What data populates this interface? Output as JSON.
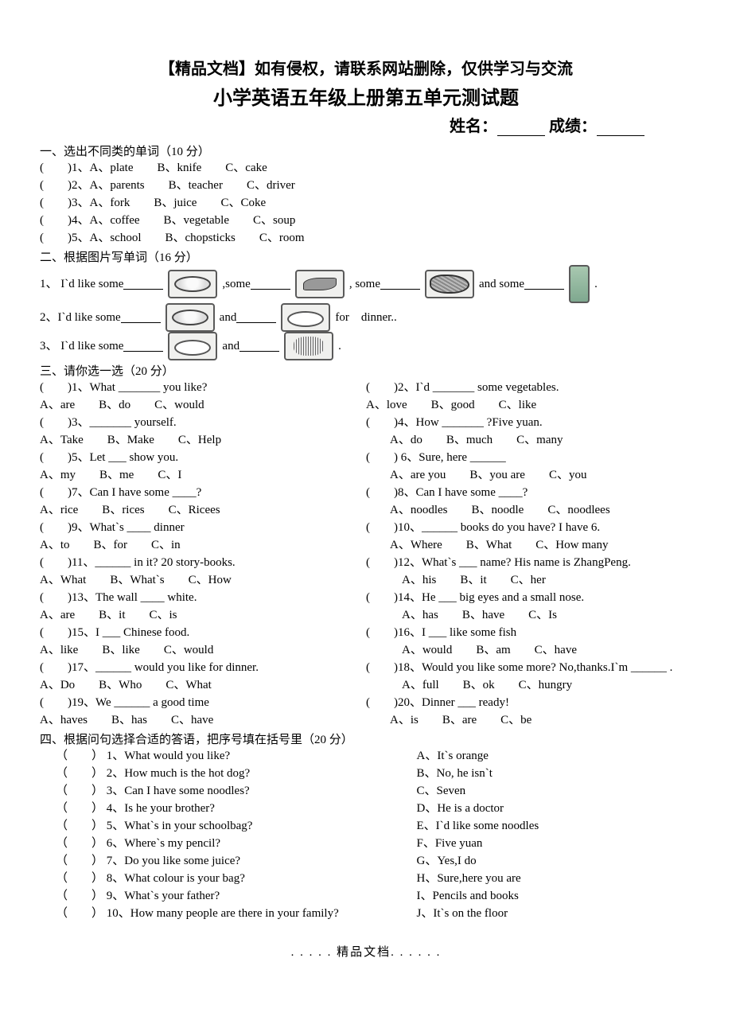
{
  "header_note": "【精品文档】如有侵权，请联系网站删除，仅供学习与交流",
  "title": "小学英语五年级上册第五单元测试题",
  "name_label": "姓名：",
  "score_label": "成绩：",
  "section1": {
    "heading": "一、选出不同类的单词（10 分）",
    "items": [
      "(　　)1、A、plate　　B、knife　　C、cake",
      "(　　)2、A、parents　　B、teacher　　C、driver",
      "(　　)3、A、fork　　B、juice　　C、Coke",
      "(　　)4、A、coffee　　B、vegetable　　C、soup",
      "(　　)5、A、school　　B、chopsticks　　C、room"
    ]
  },
  "section2": {
    "heading": "二、根据图片写单词（16 分）",
    "rows": [
      {
        "parts": [
          "1、 I`d like some",
          " ,some",
          " , some ",
          " and some ",
          " ."
        ],
        "imgs": [
          "oval",
          "fish",
          "meat",
          "bottle"
        ]
      },
      {
        "parts": [
          "2、I`d like some ",
          " and ",
          " for　dinner.."
        ],
        "imgs": [
          "oval",
          "plate"
        ]
      },
      {
        "parts": [
          "3、 I`d like some ",
          " and ",
          " ."
        ],
        "imgs": [
          "plate",
          "noodles"
        ]
      }
    ]
  },
  "section3": {
    "heading": "三、请你选一选（20 分）",
    "pairs": [
      {
        "l": {
          "q": "(　　)1、What _______ you like?",
          "a": "  A、are　　B、do　　C、would"
        },
        "r": {
          "q": "(　　)2、I`d _______ some vegetables.",
          "a": "  A、love　　B、good　　C、like"
        }
      },
      {
        "l": {
          "q": "(　　)3、_______ yourself.",
          "a": "  A、Take　　B、Make　　C、Help"
        },
        "r": {
          "q": "(　　)4、How _______ ?Five yuan.",
          "a": "　　A、do　　B、much　　C、many"
        }
      },
      {
        "l": {
          "q": "(　　)5、Let ___ show you.",
          "a": "  A、my　　B、me　　C、I"
        },
        "r": {
          "q": "(　　) 6、Sure, here ______",
          "a": "　　A、are you　　B、you are　　C、you"
        }
      },
      {
        "l": {
          "q": "(　　)7、Can I have some  ____?",
          "a": "  A、rice　　B、rices　　C、Ricees"
        },
        "r": {
          "q": "(　　)8、Can I have some  ____?",
          "a": "　　A、noodles　　B、noodle　　C、noodlees"
        }
      },
      {
        "l": {
          "q": "(　　)9、What`s  ____  dinner",
          "a": "  A、to　　B、for　　C、in"
        },
        "r": {
          "q": "(　　)10、______ books do you have? I have 6.",
          "a": "　　A、Where　　B、What　　C、How many"
        }
      },
      {
        "l": {
          "q": "(　　)11、______ in it? 20 story-books.",
          "a": "  A、What　　B、What`s　　C、How"
        },
        "r": {
          "q": "(　　)12、What`s  ___  name? His name is ZhangPeng.",
          "a": "　　　A、his　　B、it　　C、her"
        }
      },
      {
        "l": {
          "q": "(　　)13、The wall  ____  white.",
          "a": "  A、are　　B、it　　C、is"
        },
        "r": {
          "q": "(　　)14、He  ___  big eyes and a small nose.",
          "a": "　　　A、has　　B、have　　C、Is"
        }
      },
      {
        "l": {
          "q": "(　　)15、I  ___  Chinese food.",
          "a": "  A、like　　B、like　　C、would"
        },
        "r": {
          "q": "(　　)16、I  ___  like some fish",
          "a": "　　　A、would　　B、am　　C、have"
        }
      },
      {
        "l": {
          "q": "(　　)17、______ would you like for dinner.",
          "a": "  A、Do　　B、Who　　C、What"
        },
        "r": {
          "q": "(　　)18、Would you like some more? No,thanks.I`m  ______  .",
          "a": "　　　A、full　　B、ok　　C、hungry"
        }
      },
      {
        "l": {
          "q": "(　　)19、We  ______  a good time",
          "a": "A、haves　　B、has　　C、have"
        },
        "r": {
          "q": "(　　)20、Dinner ___ ready!",
          "a": "　　A、is　　B、are　　C、be"
        }
      }
    ]
  },
  "section4": {
    "heading": "四、根据问句选择合适的答语，把序号填在括号里（20 分）",
    "rows": [
      {
        "l": "（　　） 1、What would you like?",
        "r": "A、It`s orange"
      },
      {
        "l": "（　　） 2、How much is the hot dog?",
        "r": "B、No, he isn`t"
      },
      {
        "l": "（　　） 3、Can I have some noodles?",
        "r": "C、Seven"
      },
      {
        "l": "（　　） 4、Is he your brother?",
        "r": "D、He is a doctor"
      },
      {
        "l": "（　　） 5、What`s in your schoolbag?",
        "r": " E、I`d like some noodles"
      },
      {
        "l": "（　　） 6、Where`s my pencil?",
        "r": " F、Five yuan"
      },
      {
        "l": "（　　） 7、Do you like some juice?",
        "r": " G、Yes,I do"
      },
      {
        "l": "（　　） 8、What colour is your bag?",
        "r": " H、Sure,here you are"
      },
      {
        "l": "（　　） 9、What`s your father?",
        "r": "  I、Pencils and books"
      },
      {
        "l": "（　　） 10、How many people are there in your family?",
        "r": "   J、It`s on the floor"
      }
    ]
  },
  "footer": ". . . . . 精品文档. . . . . ."
}
